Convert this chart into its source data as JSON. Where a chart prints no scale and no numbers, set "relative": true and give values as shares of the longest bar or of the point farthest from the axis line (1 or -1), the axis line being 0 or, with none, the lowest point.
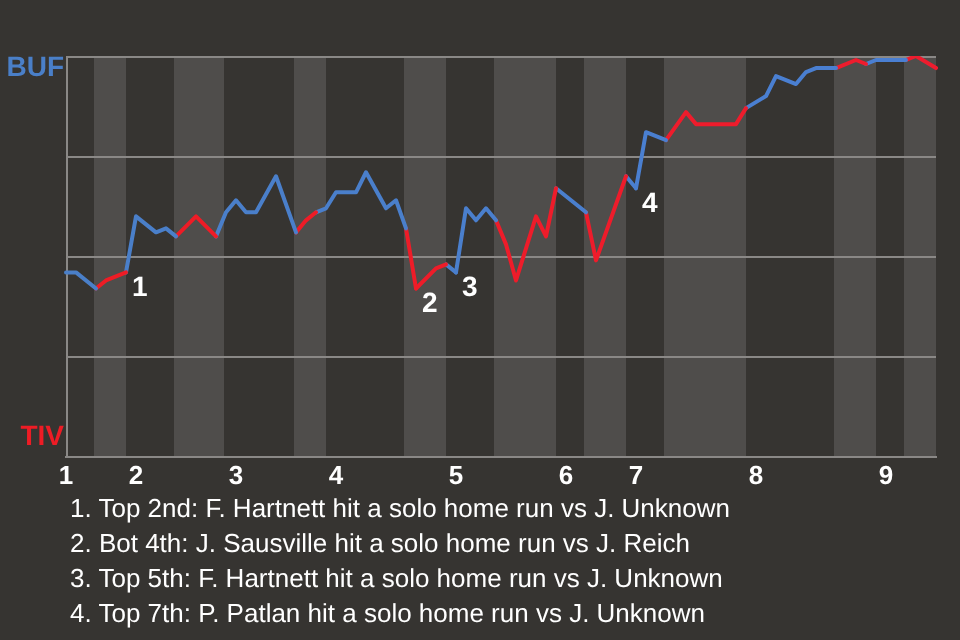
{
  "chart_data": {
    "type": "line",
    "relative": true,
    "categories": [
      "1",
      null,
      null,
      null,
      null,
      null,
      null,
      "2",
      null,
      null,
      null,
      null,
      null,
      null,
      null,
      null,
      null,
      "3",
      null,
      null,
      null,
      null,
      null,
      null,
      null,
      null,
      null,
      "4",
      null,
      null,
      null,
      null,
      null,
      null,
      null,
      null,
      null,
      null,
      null,
      "5",
      null,
      null,
      null,
      null,
      null,
      null,
      null,
      null,
      null,
      null,
      "6",
      null,
      null,
      null,
      null,
      null,
      null,
      "7",
      null,
      null,
      null,
      null,
      null,
      null,
      null,
      null,
      null,
      null,
      null,
      "8",
      null,
      null,
      null,
      null,
      null,
      null,
      null,
      null,
      null,
      null,
      null,
      null,
      "9",
      null,
      null,
      null,
      null,
      null
    ],
    "series": [
      {
        "color": "#4a7fc8",
        "values": [
          0.46,
          0.46,
          null,
          0.42,
          null,
          null,
          null,
          null,
          null,
          null,
          null,
          null,
          null,
          null,
          null,
          null,
          null,
          null,
          null,
          null,
          null,
          null,
          null,
          null,
          null,
          null,
          null,
          null,
          null,
          null,
          null,
          null,
          null,
          null,
          null,
          null,
          null,
          null,
          null,
          null,
          null,
          null,
          null,
          null,
          null,
          null,
          null,
          null,
          null,
          null,
          null,
          null,
          null,
          null,
          null,
          null,
          null,
          null,
          null,
          null,
          null,
          null,
          null,
          null,
          null,
          null,
          null,
          null,
          null,
          null,
          null,
          null,
          null,
          null,
          null,
          null,
          null,
          null,
          null,
          null,
          null,
          null,
          null,
          null,
          null,
          null,
          null,
          null
        ]
      },
      {
        "color": "#ee1c25",
        "values": [
          null,
          null,
          null,
          0.42,
          0.44,
          null,
          0.46,
          null,
          null,
          null,
          null,
          null,
          null,
          null,
          null,
          null,
          null,
          null,
          null,
          null,
          null,
          null,
          null,
          null,
          null,
          null,
          null,
          null,
          null,
          null,
          null,
          null,
          null,
          null,
          null,
          null,
          null,
          null,
          null,
          null,
          null,
          null,
          null,
          null,
          null,
          null,
          null,
          null,
          null,
          null,
          null,
          null,
          null,
          null,
          null,
          null,
          null,
          null,
          null,
          null,
          null,
          null,
          null,
          null,
          null,
          null,
          null,
          null,
          null,
          null,
          null,
          null,
          null,
          null,
          null,
          null,
          null,
          null,
          null,
          null,
          null,
          null,
          null,
          null,
          null,
          null,
          null,
          null
        ]
      },
      {
        "name": "1",
        "color": "#4a7fc9",
        "values": [
          null,
          null,
          null,
          null,
          null,
          null,
          0.46,
          0.6,
          null,
          0.56,
          0.57,
          0.55,
          null,
          null,
          null,
          null,
          null,
          null,
          null,
          null,
          null,
          null,
          null,
          null,
          null,
          null,
          null,
          null,
          null,
          null,
          null,
          null,
          null,
          null,
          null,
          null,
          null,
          null,
          null,
          null,
          null,
          null,
          null,
          null,
          null,
          null,
          null,
          null,
          null,
          null,
          null,
          null,
          null,
          null,
          null,
          null,
          null,
          null,
          null,
          null,
          null,
          null,
          null,
          null,
          null,
          null,
          null,
          null,
          null,
          null,
          null,
          null,
          null,
          null,
          null,
          null,
          null,
          null,
          null,
          null,
          null,
          null,
          null,
          null,
          null,
          null,
          null,
          null
        ]
      },
      {
        "color": "#ee1c26",
        "values": [
          null,
          null,
          null,
          null,
          null,
          null,
          null,
          null,
          null,
          null,
          null,
          0.55,
          null,
          0.6,
          null,
          0.55,
          null,
          null,
          null,
          null,
          null,
          null,
          null,
          null,
          null,
          null,
          null,
          null,
          null,
          null,
          null,
          null,
          null,
          null,
          null,
          null,
          null,
          null,
          null,
          null,
          null,
          null,
          null,
          null,
          null,
          null,
          null,
          null,
          null,
          null,
          null,
          null,
          null,
          null,
          null,
          null,
          null,
          null,
          null,
          null,
          null,
          null,
          null,
          null,
          null,
          null,
          null,
          null,
          null,
          null,
          null,
          null,
          null,
          null,
          null,
          null,
          null,
          null,
          null,
          null,
          null,
          null,
          null,
          null,
          null,
          null,
          null,
          null
        ]
      },
      {
        "color": "#4a7fca",
        "values": [
          null,
          null,
          null,
          null,
          null,
          null,
          null,
          null,
          null,
          null,
          null,
          null,
          null,
          null,
          null,
          0.55,
          0.61,
          0.64,
          0.61,
          0.61,
          null,
          0.7,
          null,
          0.56,
          null,
          null,
          null,
          null,
          null,
          null,
          null,
          null,
          null,
          null,
          null,
          null,
          null,
          null,
          null,
          null,
          null,
          null,
          null,
          null,
          null,
          null,
          null,
          null,
          null,
          null,
          null,
          null,
          null,
          null,
          null,
          null,
          null,
          null,
          null,
          null,
          null,
          null,
          null,
          null,
          null,
          null,
          null,
          null,
          null,
          null,
          null,
          null,
          null,
          null,
          null,
          null,
          null,
          null,
          null,
          null,
          null,
          null,
          null,
          null,
          null,
          null,
          null,
          null
        ]
      },
      {
        "color": "#ee1c27",
        "values": [
          null,
          null,
          null,
          null,
          null,
          null,
          null,
          null,
          null,
          null,
          null,
          null,
          null,
          null,
          null,
          null,
          null,
          null,
          null,
          null,
          null,
          null,
          null,
          0.56,
          0.59,
          0.61,
          null,
          null,
          null,
          null,
          null,
          null,
          null,
          null,
          null,
          null,
          null,
          null,
          null,
          null,
          null,
          null,
          null,
          null,
          null,
          null,
          null,
          null,
          null,
          null,
          null,
          null,
          null,
          null,
          null,
          null,
          null,
          null,
          null,
          null,
          null,
          null,
          null,
          null,
          null,
          null,
          null,
          null,
          null,
          null,
          null,
          null,
          null,
          null,
          null,
          null,
          null,
          null,
          null,
          null,
          null,
          null,
          null,
          null,
          null,
          null,
          null,
          null
        ]
      },
      {
        "color": "#4a7fcb",
        "values": [
          null,
          null,
          null,
          null,
          null,
          null,
          null,
          null,
          null,
          null,
          null,
          null,
          null,
          null,
          null,
          null,
          null,
          null,
          null,
          null,
          null,
          null,
          null,
          null,
          null,
          0.61,
          0.62,
          0.66,
          null,
          0.66,
          0.71,
          null,
          0.62,
          0.64,
          0.57,
          null,
          null,
          null,
          null,
          null,
          null,
          null,
          null,
          null,
          null,
          null,
          null,
          null,
          null,
          null,
          null,
          null,
          null,
          null,
          null,
          null,
          null,
          null,
          null,
          null,
          null,
          null,
          null,
          null,
          null,
          null,
          null,
          null,
          null,
          null,
          null,
          null,
          null,
          null,
          null,
          null,
          null,
          null,
          null,
          null,
          null,
          null,
          null,
          null,
          null,
          null,
          null,
          null
        ]
      },
      {
        "color": "#ee1c28",
        "values": [
          null,
          null,
          null,
          null,
          null,
          null,
          null,
          null,
          null,
          null,
          null,
          null,
          null,
          null,
          null,
          null,
          null,
          null,
          null,
          null,
          null,
          null,
          null,
          null,
          null,
          null,
          null,
          null,
          null,
          null,
          null,
          null,
          null,
          null,
          0.57,
          0.42,
          null,
          null,
          null,
          null,
          null,
          null,
          null,
          null,
          null,
          null,
          null,
          null,
          null,
          null,
          null,
          null,
          null,
          null,
          null,
          null,
          null,
          null,
          null,
          null,
          null,
          null,
          null,
          null,
          null,
          null,
          null,
          null,
          null,
          null,
          null,
          null,
          null,
          null,
          null,
          null,
          null,
          null,
          null,
          null,
          null,
          null,
          null,
          null,
          null,
          null,
          null,
          null
        ]
      },
      {
        "name": "2",
        "color": "#ee1c29",
        "values": [
          null,
          null,
          null,
          null,
          null,
          null,
          null,
          null,
          null,
          null,
          null,
          null,
          null,
          null,
          null,
          null,
          null,
          null,
          null,
          null,
          null,
          null,
          null,
          null,
          null,
          null,
          null,
          null,
          null,
          null,
          null,
          null,
          null,
          null,
          null,
          0.42,
          null,
          0.47,
          0.48,
          null,
          null,
          null,
          null,
          null,
          null,
          null,
          null,
          null,
          null,
          null,
          null,
          null,
          null,
          null,
          null,
          null,
          null,
          null,
          null,
          null,
          null,
          null,
          null,
          null,
          null,
          null,
          null,
          null,
          null,
          null,
          null,
          null,
          null,
          null,
          null,
          null,
          null,
          null,
          null,
          null,
          null,
          null,
          null,
          null,
          null,
          null,
          null,
          null
        ]
      },
      {
        "color": "#4a7fcc",
        "values": [
          null,
          null,
          null,
          null,
          null,
          null,
          null,
          null,
          null,
          null,
          null,
          null,
          null,
          null,
          null,
          null,
          null,
          null,
          null,
          null,
          null,
          null,
          null,
          null,
          null,
          null,
          null,
          null,
          null,
          null,
          null,
          null,
          null,
          null,
          null,
          null,
          null,
          null,
          0.48,
          0.46,
          null,
          null,
          null,
          null,
          null,
          null,
          null,
          null,
          null,
          null,
          null,
          null,
          null,
          null,
          null,
          null,
          null,
          null,
          null,
          null,
          null,
          null,
          null,
          null,
          null,
          null,
          null,
          null,
          null,
          null,
          null,
          null,
          null,
          null,
          null,
          null,
          null,
          null,
          null,
          null,
          null,
          null,
          null,
          null,
          null,
          null,
          null,
          null
        ]
      },
      {
        "name": "3",
        "color": "#4a7fcd",
        "values": [
          null,
          null,
          null,
          null,
          null,
          null,
          null,
          null,
          null,
          null,
          null,
          null,
          null,
          null,
          null,
          null,
          null,
          null,
          null,
          null,
          null,
          null,
          null,
          null,
          null,
          null,
          null,
          null,
          null,
          null,
          null,
          null,
          null,
          null,
          null,
          null,
          null,
          null,
          null,
          0.46,
          0.62,
          0.59,
          0.62,
          0.59,
          null,
          null,
          null,
          null,
          null,
          null,
          null,
          null,
          null,
          null,
          null,
          null,
          null,
          null,
          null,
          null,
          null,
          null,
          null,
          null,
          null,
          null,
          null,
          null,
          null,
          null,
          null,
          null,
          null,
          null,
          null,
          null,
          null,
          null,
          null,
          null,
          null,
          null,
          null,
          null,
          null,
          null,
          null,
          null
        ]
      },
      {
        "color": "#ee1c2a",
        "values": [
          null,
          null,
          null,
          null,
          null,
          null,
          null,
          null,
          null,
          null,
          null,
          null,
          null,
          null,
          null,
          null,
          null,
          null,
          null,
          null,
          null,
          null,
          null,
          null,
          null,
          null,
          null,
          null,
          null,
          null,
          null,
          null,
          null,
          null,
          null,
          null,
          null,
          null,
          null,
          null,
          null,
          null,
          null,
          0.59,
          0.53,
          0.44,
          null,
          0.6,
          0.55,
          0.67,
          null,
          null,
          null,
          null,
          null,
          null,
          null,
          null,
          null,
          null,
          null,
          null,
          null,
          null,
          null,
          null,
          null,
          null,
          null,
          null,
          null,
          null,
          null,
          null,
          null,
          null,
          null,
          null,
          null,
          null,
          null,
          null,
          null,
          null,
          null,
          null,
          null,
          null
        ]
      },
      {
        "color": "#4a7fce",
        "values": [
          null,
          null,
          null,
          null,
          null,
          null,
          null,
          null,
          null,
          null,
          null,
          null,
          null,
          null,
          null,
          null,
          null,
          null,
          null,
          null,
          null,
          null,
          null,
          null,
          null,
          null,
          null,
          null,
          null,
          null,
          null,
          null,
          null,
          null,
          null,
          null,
          null,
          null,
          null,
          null,
          null,
          null,
          null,
          null,
          null,
          null,
          null,
          null,
          null,
          0.67,
          null,
          null,
          0.61,
          null,
          null,
          null,
          null,
          null,
          null,
          null,
          null,
          null,
          null,
          null,
          null,
          null,
          null,
          null,
          null,
          null,
          null,
          null,
          null,
          null,
          null,
          null,
          null,
          null,
          null,
          null,
          null,
          null,
          null,
          null,
          null,
          null,
          null,
          null
        ]
      },
      {
        "color": "#ee1c2b",
        "values": [
          null,
          null,
          null,
          null,
          null,
          null,
          null,
          null,
          null,
          null,
          null,
          null,
          null,
          null,
          null,
          null,
          null,
          null,
          null,
          null,
          null,
          null,
          null,
          null,
          null,
          null,
          null,
          null,
          null,
          null,
          null,
          null,
          null,
          null,
          null,
          null,
          null,
          null,
          null,
          null,
          null,
          null,
          null,
          null,
          null,
          null,
          null,
          null,
          null,
          null,
          null,
          null,
          0.61,
          0.49,
          null,
          null,
          0.7,
          null,
          null,
          null,
          null,
          null,
          null,
          null,
          null,
          null,
          null,
          null,
          null,
          null,
          null,
          null,
          null,
          null,
          null,
          null,
          null,
          null,
          null,
          null,
          null,
          null,
          null,
          null,
          null,
          null,
          null,
          null
        ]
      },
      {
        "color": "#4a7fcf",
        "values": [
          null,
          null,
          null,
          null,
          null,
          null,
          null,
          null,
          null,
          null,
          null,
          null,
          null,
          null,
          null,
          null,
          null,
          null,
          null,
          null,
          null,
          null,
          null,
          null,
          null,
          null,
          null,
          null,
          null,
          null,
          null,
          null,
          null,
          null,
          null,
          null,
          null,
          null,
          null,
          null,
          null,
          null,
          null,
          null,
          null,
          null,
          null,
          null,
          null,
          null,
          null,
          null,
          null,
          null,
          null,
          null,
          0.7,
          0.67,
          null,
          null,
          null,
          null,
          null,
          null,
          null,
          null,
          null,
          null,
          null,
          null,
          null,
          null,
          null,
          null,
          null,
          null,
          null,
          null,
          null,
          null,
          null,
          null,
          null,
          null,
          null,
          null,
          null,
          null
        ]
      },
      {
        "name": "4",
        "color": "#4a7fd0",
        "values": [
          null,
          null,
          null,
          null,
          null,
          null,
          null,
          null,
          null,
          null,
          null,
          null,
          null,
          null,
          null,
          null,
          null,
          null,
          null,
          null,
          null,
          null,
          null,
          null,
          null,
          null,
          null,
          null,
          null,
          null,
          null,
          null,
          null,
          null,
          null,
          null,
          null,
          null,
          null,
          null,
          null,
          null,
          null,
          null,
          null,
          null,
          null,
          null,
          null,
          null,
          null,
          null,
          null,
          null,
          null,
          null,
          null,
          0.67,
          0.81,
          0.8,
          0.79,
          null,
          null,
          null,
          null,
          null,
          null,
          null,
          null,
          null,
          null,
          null,
          null,
          null,
          null,
          null,
          null,
          null,
          null,
          null,
          null,
          null,
          null,
          null,
          null,
          null,
          null,
          null
        ]
      },
      {
        "color": "#ee1c2c",
        "values": [
          null,
          null,
          null,
          null,
          null,
          null,
          null,
          null,
          null,
          null,
          null,
          null,
          null,
          null,
          null,
          null,
          null,
          null,
          null,
          null,
          null,
          null,
          null,
          null,
          null,
          null,
          null,
          null,
          null,
          null,
          null,
          null,
          null,
          null,
          null,
          null,
          null,
          null,
          null,
          null,
          null,
          null,
          null,
          null,
          null,
          null,
          null,
          null,
          null,
          null,
          null,
          null,
          null,
          null,
          null,
          null,
          null,
          null,
          null,
          null,
          0.79,
          null,
          0.86,
          0.83,
          null,
          null,
          null,
          0.83,
          0.87,
          null,
          null,
          null,
          null,
          null,
          null,
          null,
          null,
          null,
          null,
          null,
          null,
          null,
          null,
          null,
          null,
          null,
          null,
          null
        ]
      },
      {
        "color": "#4a7fd1",
        "values": [
          null,
          null,
          null,
          null,
          null,
          null,
          null,
          null,
          null,
          null,
          null,
          null,
          null,
          null,
          null,
          null,
          null,
          null,
          null,
          null,
          null,
          null,
          null,
          null,
          null,
          null,
          null,
          null,
          null,
          null,
          null,
          null,
          null,
          null,
          null,
          null,
          null,
          null,
          null,
          null,
          null,
          null,
          null,
          null,
          null,
          null,
          null,
          null,
          null,
          null,
          null,
          null,
          null,
          null,
          null,
          null,
          null,
          null,
          null,
          null,
          null,
          null,
          null,
          null,
          null,
          null,
          null,
          null,
          0.87,
          null,
          0.9,
          0.95,
          0.94,
          0.93,
          0.96,
          0.97,
          null,
          0.97,
          null,
          null,
          null,
          null,
          null,
          null,
          null,
          null,
          null,
          null
        ]
      },
      {
        "color": "#ee1c2d",
        "values": [
          null,
          null,
          null,
          null,
          null,
          null,
          null,
          null,
          null,
          null,
          null,
          null,
          null,
          null,
          null,
          null,
          null,
          null,
          null,
          null,
          null,
          null,
          null,
          null,
          null,
          null,
          null,
          null,
          null,
          null,
          null,
          null,
          null,
          null,
          null,
          null,
          null,
          null,
          null,
          null,
          null,
          null,
          null,
          null,
          null,
          null,
          null,
          null,
          null,
          null,
          null,
          null,
          null,
          null,
          null,
          null,
          null,
          null,
          null,
          null,
          null,
          null,
          null,
          null,
          null,
          null,
          null,
          null,
          null,
          null,
          null,
          null,
          null,
          null,
          null,
          null,
          null,
          0.97,
          null,
          0.99,
          0.98,
          null,
          null,
          null,
          null,
          null,
          null,
          null
        ]
      },
      {
        "color": "#4a7fd2",
        "values": [
          null,
          null,
          null,
          null,
          null,
          null,
          null,
          null,
          null,
          null,
          null,
          null,
          null,
          null,
          null,
          null,
          null,
          null,
          null,
          null,
          null,
          null,
          null,
          null,
          null,
          null,
          null,
          null,
          null,
          null,
          null,
          null,
          null,
          null,
          null,
          null,
          null,
          null,
          null,
          null,
          null,
          null,
          null,
          null,
          null,
          null,
          null,
          null,
          null,
          null,
          null,
          null,
          null,
          null,
          null,
          null,
          null,
          null,
          null,
          null,
          null,
          null,
          null,
          null,
          null,
          null,
          null,
          null,
          null,
          null,
          null,
          null,
          null,
          null,
          null,
          null,
          null,
          null,
          null,
          null,
          0.98,
          0.99,
          null,
          null,
          0.99,
          null,
          null,
          null
        ]
      },
      {
        "color": "#ee1c2e",
        "values": [
          null,
          null,
          null,
          null,
          null,
          null,
          null,
          null,
          null,
          null,
          null,
          null,
          null,
          null,
          null,
          null,
          null,
          null,
          null,
          null,
          null,
          null,
          null,
          null,
          null,
          null,
          null,
          null,
          null,
          null,
          null,
          null,
          null,
          null,
          null,
          null,
          null,
          null,
          null,
          null,
          null,
          null,
          null,
          null,
          null,
          null,
          null,
          null,
          null,
          null,
          null,
          null,
          null,
          null,
          null,
          null,
          null,
          null,
          null,
          null,
          null,
          null,
          null,
          null,
          null,
          null,
          null,
          null,
          null,
          null,
          null,
          null,
          null,
          null,
          null,
          null,
          null,
          null,
          null,
          null,
          null,
          null,
          null,
          null,
          0.99,
          1,
          null,
          0.97
        ]
      }
    ],
    "grid": "y",
    "legend": false,
    "marker": "none",
    "line_style": "solid",
    "annotations": [
      "BUF",
      "TIV",
      "1. Top 2nd: F. Hartnett hit a solo home run vs J. Unknown",
      "2. Bot 4th: J. Sausville hit a solo home run vs J. Reich",
      "3. Top 5th: F. Hartnett hit a solo home run vs J. Unknown",
      "4. Top 7th: P. Patlan hit a solo home run vs J. Unknown"
    ]
  }
}
